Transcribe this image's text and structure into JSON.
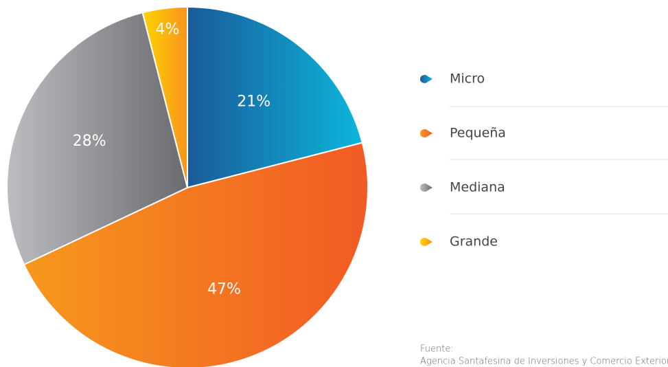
{
  "chart_data": {
    "type": "pie",
    "categories": [
      "Micro",
      "Pequeña",
      "Mediana",
      "Grande"
    ],
    "values": [
      21,
      47,
      28,
      4
    ],
    "value_labels": [
      "21%",
      "47%",
      "28%",
      "4%"
    ],
    "colors": [
      [
        "#1a5a98",
        "#0cb6dc"
      ],
      [
        "#f7981d",
        "#f15a24"
      ],
      [
        "#bcbdc1",
        "#6a6b6f"
      ],
      [
        "#ffd400",
        "#f7941d"
      ]
    ],
    "source_label": "Fuente:",
    "source": "Agencia Santafesina de Inversiones y Comercio Exterior"
  }
}
